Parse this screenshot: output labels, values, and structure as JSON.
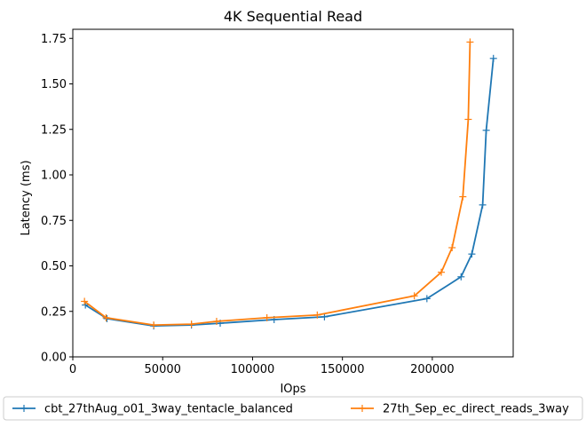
{
  "chart_data": {
    "type": "line",
    "title": "4K  Sequential Read",
    "xlabel": "IOps",
    "ylabel": "Latency (ms)",
    "xlim": [
      0,
      245000
    ],
    "ylim": [
      0,
      1.8
    ],
    "xticks": [
      0,
      50000,
      100000,
      150000,
      200000
    ],
    "xtick_labels": [
      "0",
      "50000",
      "100000",
      "150000",
      "200000"
    ],
    "yticks": [
      0,
      0.25,
      0.5,
      0.75,
      1.0,
      1.25,
      1.5,
      1.75
    ],
    "ytick_labels": [
      "0.00",
      "0.25",
      "0.50",
      "0.75",
      "1.00",
      "1.25",
      "1.50",
      "1.75"
    ],
    "grid": false,
    "legend_position": "bottom-center",
    "series": [
      {
        "name": "cbt_27thAug_o01_3way_tentacle_balanced",
        "color": "#1f77b4",
        "marker": "+",
        "x": [
          7000,
          19000,
          45000,
          66000,
          82000,
          112000,
          140000,
          197000,
          216000,
          222000,
          228000,
          230000,
          234000
        ],
        "y": [
          0.285,
          0.21,
          0.17,
          0.175,
          0.185,
          0.205,
          0.22,
          0.32,
          0.44,
          0.565,
          0.835,
          1.245,
          1.64
        ]
      },
      {
        "name": "27th_Sep_ec_direct_reads_3way",
        "color": "#ff7f0e",
        "marker": "+",
        "x": [
          6500,
          18500,
          45000,
          66000,
          80000,
          108000,
          136000,
          190000,
          205000,
          211000,
          217000,
          220000,
          221000
        ],
        "y": [
          0.305,
          0.215,
          0.175,
          0.18,
          0.195,
          0.215,
          0.23,
          0.335,
          0.465,
          0.6,
          0.88,
          1.305,
          1.73
        ]
      }
    ]
  }
}
